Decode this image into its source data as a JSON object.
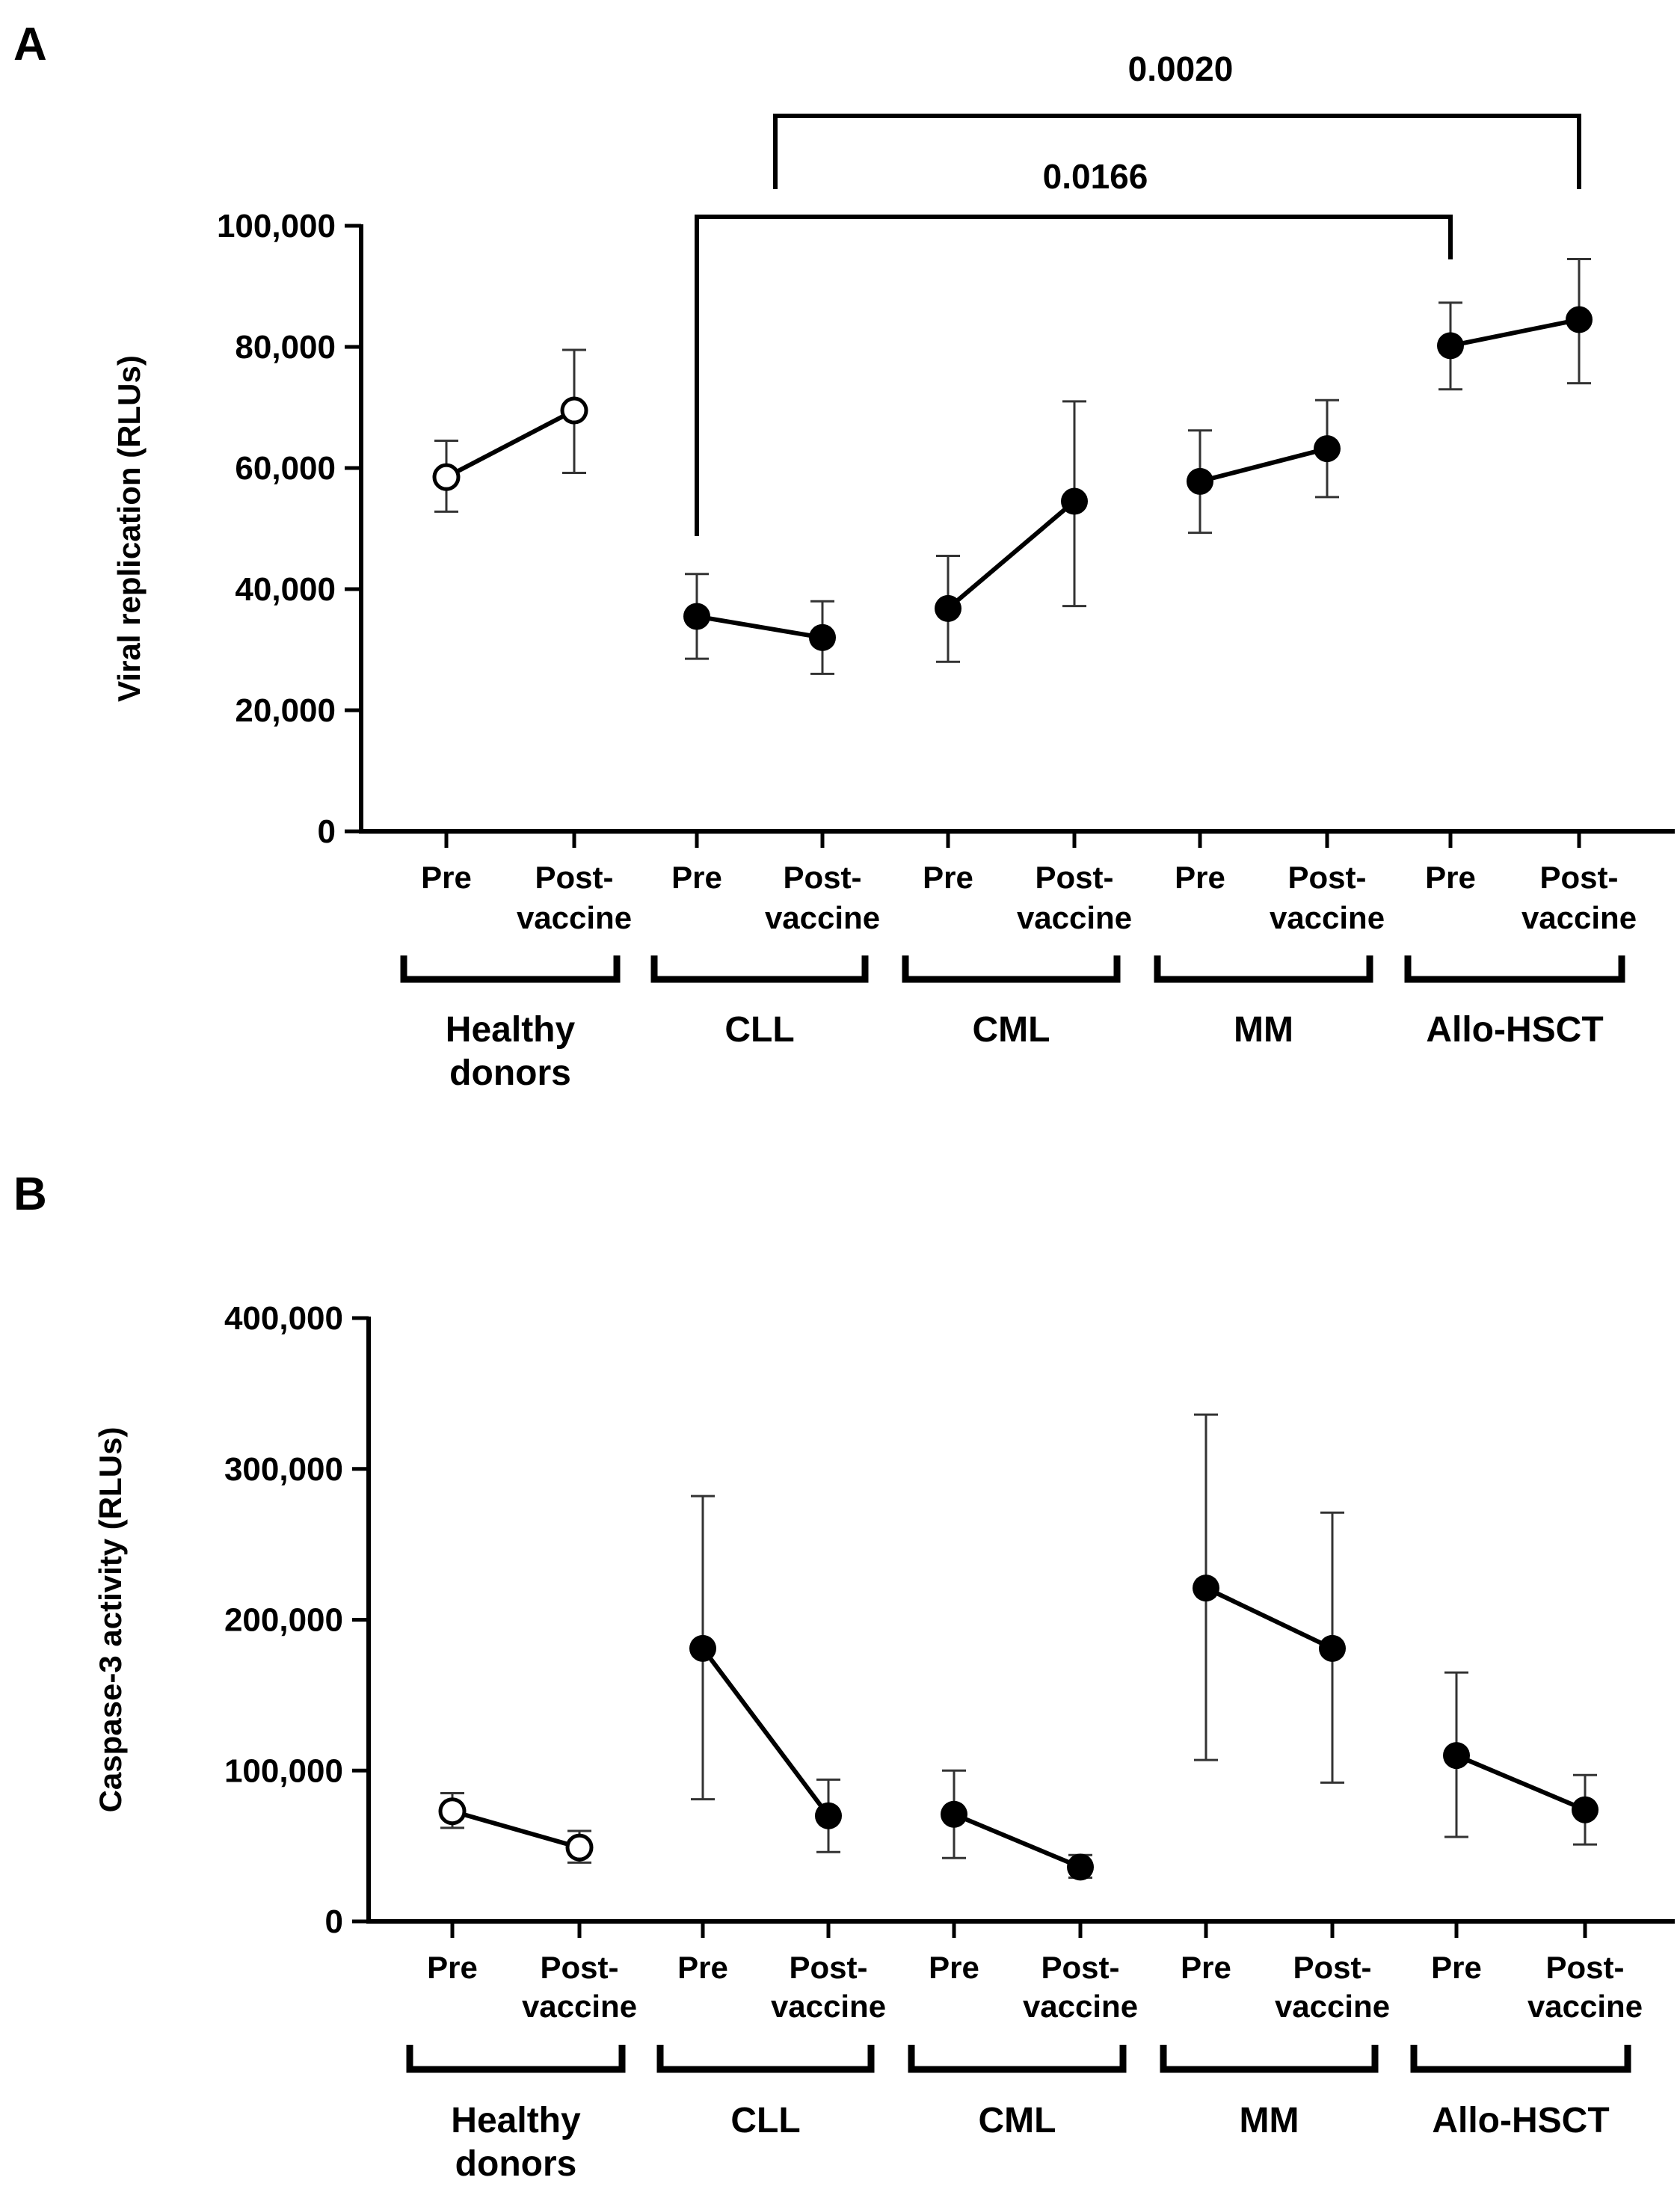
{
  "chart_data": [
    {
      "panel": "A",
      "type": "line",
      "ylabel": "Viral replication (RLUs)",
      "ylim": [
        0,
        100000
      ],
      "yticks": [
        "0",
        "20,000",
        "40,000",
        "60,000",
        "80,000",
        "100,000"
      ],
      "groups": [
        {
          "name": "Healthy donors",
          "marker": "open",
          "points": [
            {
              "label": "Pre",
              "mean": 58500,
              "lower": 52800,
              "upper": 64500
            },
            {
              "label": "Post-vaccine",
              "mean": 69500,
              "lower": 59200,
              "upper": 79500
            }
          ]
        },
        {
          "name": "CLL",
          "marker": "filled",
          "points": [
            {
              "label": "Pre",
              "mean": 35500,
              "lower": 28500,
              "upper": 42500
            },
            {
              "label": "Post-vaccine",
              "mean": 32000,
              "lower": 26000,
              "upper": 38000
            }
          ]
        },
        {
          "name": "CML",
          "marker": "filled",
          "points": [
            {
              "label": "Pre",
              "mean": 36800,
              "lower": 28000,
              "upper": 45500
            },
            {
              "label": "Post-vaccine",
              "mean": 54500,
              "lower": 37200,
              "upper": 71000
            }
          ]
        },
        {
          "name": "MM",
          "marker": "filled",
          "points": [
            {
              "label": "Pre",
              "mean": 57800,
              "lower": 49300,
              "upper": 66200
            },
            {
              "label": "Post-vaccine",
              "mean": 63200,
              "lower": 55200,
              "upper": 71200
            }
          ]
        },
        {
          "name": "Allo-HSCT",
          "marker": "filled",
          "points": [
            {
              "label": "Pre",
              "mean": 80200,
              "lower": 73000,
              "upper": 87300
            },
            {
              "label": "Post-vaccine",
              "mean": 84500,
              "lower": 74000,
              "upper": 94500
            }
          ]
        }
      ],
      "comparisons": [
        {
          "label": "0.0166",
          "from": "CLL Pre",
          "to": "Allo-HSCT Pre"
        },
        {
          "label": "0.0020",
          "from": "CLL Post-vaccine",
          "to": "Allo-HSCT Post-vaccine"
        }
      ]
    },
    {
      "panel": "B",
      "type": "line",
      "ylabel": "Caspase-3 activity (RLUs)",
      "ylim": [
        0,
        400000
      ],
      "yticks": [
        "0",
        "100,000",
        "200,000",
        "300,000",
        "400,000"
      ],
      "groups": [
        {
          "name": "Healthy donors",
          "marker": "open",
          "points": [
            {
              "label": "Pre",
              "mean": 73000,
              "lower": 62000,
              "upper": 85000
            },
            {
              "label": "Post-vaccine",
              "mean": 49000,
              "lower": 39000,
              "upper": 60000
            }
          ]
        },
        {
          "name": "CLL",
          "marker": "filled",
          "points": [
            {
              "label": "Pre",
              "mean": 181000,
              "lower": 81000,
              "upper": 282000
            },
            {
              "label": "Post-vaccine",
              "mean": 70000,
              "lower": 46000,
              "upper": 94000
            }
          ]
        },
        {
          "name": "CML",
          "marker": "filled",
          "points": [
            {
              "label": "Pre",
              "mean": 71000,
              "lower": 42000,
              "upper": 100000
            },
            {
              "label": "Post-vaccine",
              "mean": 36000,
              "lower": 29000,
              "upper": 44000
            }
          ]
        },
        {
          "name": "MM",
          "marker": "filled",
          "points": [
            {
              "label": "Pre",
              "mean": 221000,
              "lower": 107000,
              "upper": 336000
            },
            {
              "label": "Post-vaccine",
              "mean": 181000,
              "lower": 92000,
              "upper": 271000
            }
          ]
        },
        {
          "name": "Allo-HSCT",
          "marker": "filled",
          "points": [
            {
              "label": "Pre",
              "mean": 110000,
              "lower": 56000,
              "upper": 165000
            },
            {
              "label": "Post-vaccine",
              "mean": 74000,
              "lower": 51000,
              "upper": 97000
            }
          ]
        }
      ],
      "comparisons": []
    }
  ]
}
